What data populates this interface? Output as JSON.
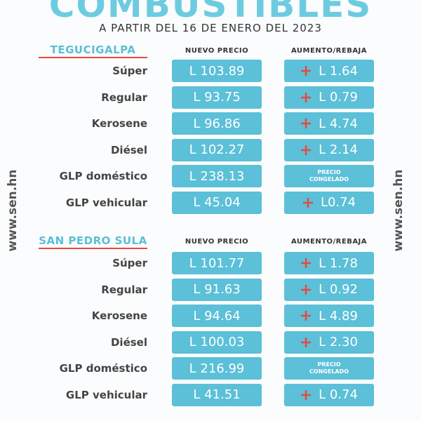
{
  "title": "COMBUSTIBLES",
  "subtitle": "A PARTIR DEL 16 DE ENERO DEL 2023",
  "side_text": "www.sen.hn",
  "sections": [
    {
      "city": "TEGUCIGALPA",
      "price_header": "NUEVO PRECIO",
      "change_header": "AUMENTO/REBAJA",
      "rows": [
        {
          "fuel": "Súper",
          "price": "L 103.89",
          "change": "L 1.64"
        },
        {
          "fuel": "Regular",
          "price": "L 93.75",
          "change": "L 0.79"
        },
        {
          "fuel": "Kerosene",
          "price": "L 96.86",
          "change": "L 4.74"
        },
        {
          "fuel": "Diésel",
          "price": "L 102.27",
          "change": "L 2.14"
        },
        {
          "fuel": "GLP doméstico",
          "price": "L 238.13",
          "status": "PRECIO CONGELADO"
        },
        {
          "fuel": "GLP vehicular",
          "price": "L 45.04",
          "change": "L0.74"
        }
      ]
    },
    {
      "city": "SAN PEDRO SULA",
      "price_header": "NUEVO PRECIO",
      "change_header": "AUMENTO/REBAJA",
      "rows": [
        {
          "fuel": "Súper",
          "price": "L 101.77",
          "change": "L 1.78"
        },
        {
          "fuel": "Regular",
          "price": "L 91.63",
          "change": "L 0.92"
        },
        {
          "fuel": "Kerosene",
          "price": "L 94.64",
          "change": "L 4.89"
        },
        {
          "fuel": "Diésel",
          "price": "L 100.03",
          "change": "L 2.30"
        },
        {
          "fuel": "GLP doméstico",
          "price": "L 216.99",
          "status": "PRECIO CONGELADO"
        },
        {
          "fuel": "GLP vehicular",
          "price": "L 41.51",
          "change": "L 0.74"
        }
      ]
    }
  ]
}
